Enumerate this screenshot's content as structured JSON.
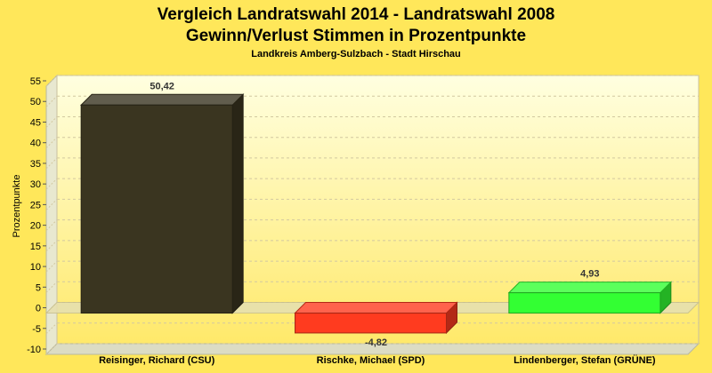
{
  "colors": {
    "background": "#ffe75a",
    "plot_top": "#ffffe0",
    "plot_bottom": "#ffe96a",
    "grid": "#d2c8a0"
  },
  "chart_data": {
    "type": "bar",
    "title": "Vergleich Landratswahl 2014 - Landratswahl 2008",
    "title2": "Gewinn/Verlust Stimmen in Prozentpunkte",
    "subtitle": "Landkreis Amberg-Sulzbach - Stadt Hirschau",
    "xlabel": "",
    "ylabel": "Prozentpunkte",
    "ylim": [
      -10,
      55
    ],
    "yticks": [
      -10,
      -5,
      0,
      5,
      10,
      15,
      20,
      25,
      30,
      35,
      40,
      45,
      50,
      55
    ],
    "grid": true,
    "categories": [
      "Reisinger, Richard (CSU)",
      "Rischke, Michael (SPD)",
      "Lindenberger, Stefan (GRÜNE)"
    ],
    "values": [
      50.42,
      -4.82,
      4.93
    ],
    "value_labels": [
      "50,42",
      "-4,82",
      "4,93"
    ],
    "bar_colors": [
      "#3a3520",
      "#ff3b1f",
      "#33ff33"
    ]
  }
}
